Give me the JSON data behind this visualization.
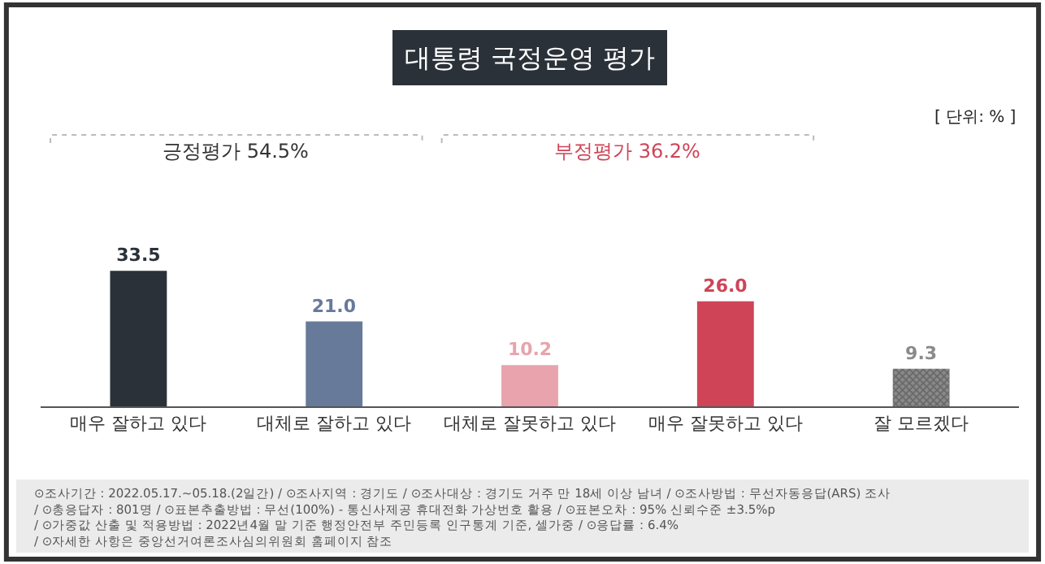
{
  "chart_data": {
    "type": "bar",
    "title": "대통령 국정운영 평가",
    "categories": [
      "매우 잘하고 있다",
      "대체로 잘하고 있다",
      "대체로 잘못하고 있다",
      "매우 잘못하고 있다",
      "잘 모르겠다"
    ],
    "values": [
      33.5,
      21.0,
      10.2,
      26.0,
      9.3
    ],
    "colors": [
      "#2b3139",
      "#677a9a",
      "#e8a3ac",
      "#cf4457",
      "#8a8a8a"
    ],
    "value_labels": [
      "33.5",
      "21.0",
      "10.2",
      "26.0",
      "9.3"
    ],
    "legend": false,
    "annotations": [
      "[ 단위: % ]",
      "긍정평가 54.5%",
      "부정평가 36.2%",
      "⊙조사기간 : 2022.05.17.~05.18.(2일간) / ⊙조사지역 : 경기도 / ⊙조사대상 : 경기도 거주 만 18세 이상 남녀 / ⊙조사방법 : 무선자동응답(ARS) 조사 / ⊙총응답자 : 801명 / ⊙표본추출방법 : 무선(100%) - 통신사제공 휴대전화 가상번호 활용 / ⊙표본오차 : 95% 신뢰수준 ±3.5%p / ⊙가중값 산출 및 적용방법 : 2022년4월 말 기준 행정안전부 주민등록 인구통계 기준, 셀가중 / ⊙응답률 : 6.4% / ⊙자세한 사항은 중앙선거여론조사심의위원회 홈페이지 참조"
    ]
  }
}
